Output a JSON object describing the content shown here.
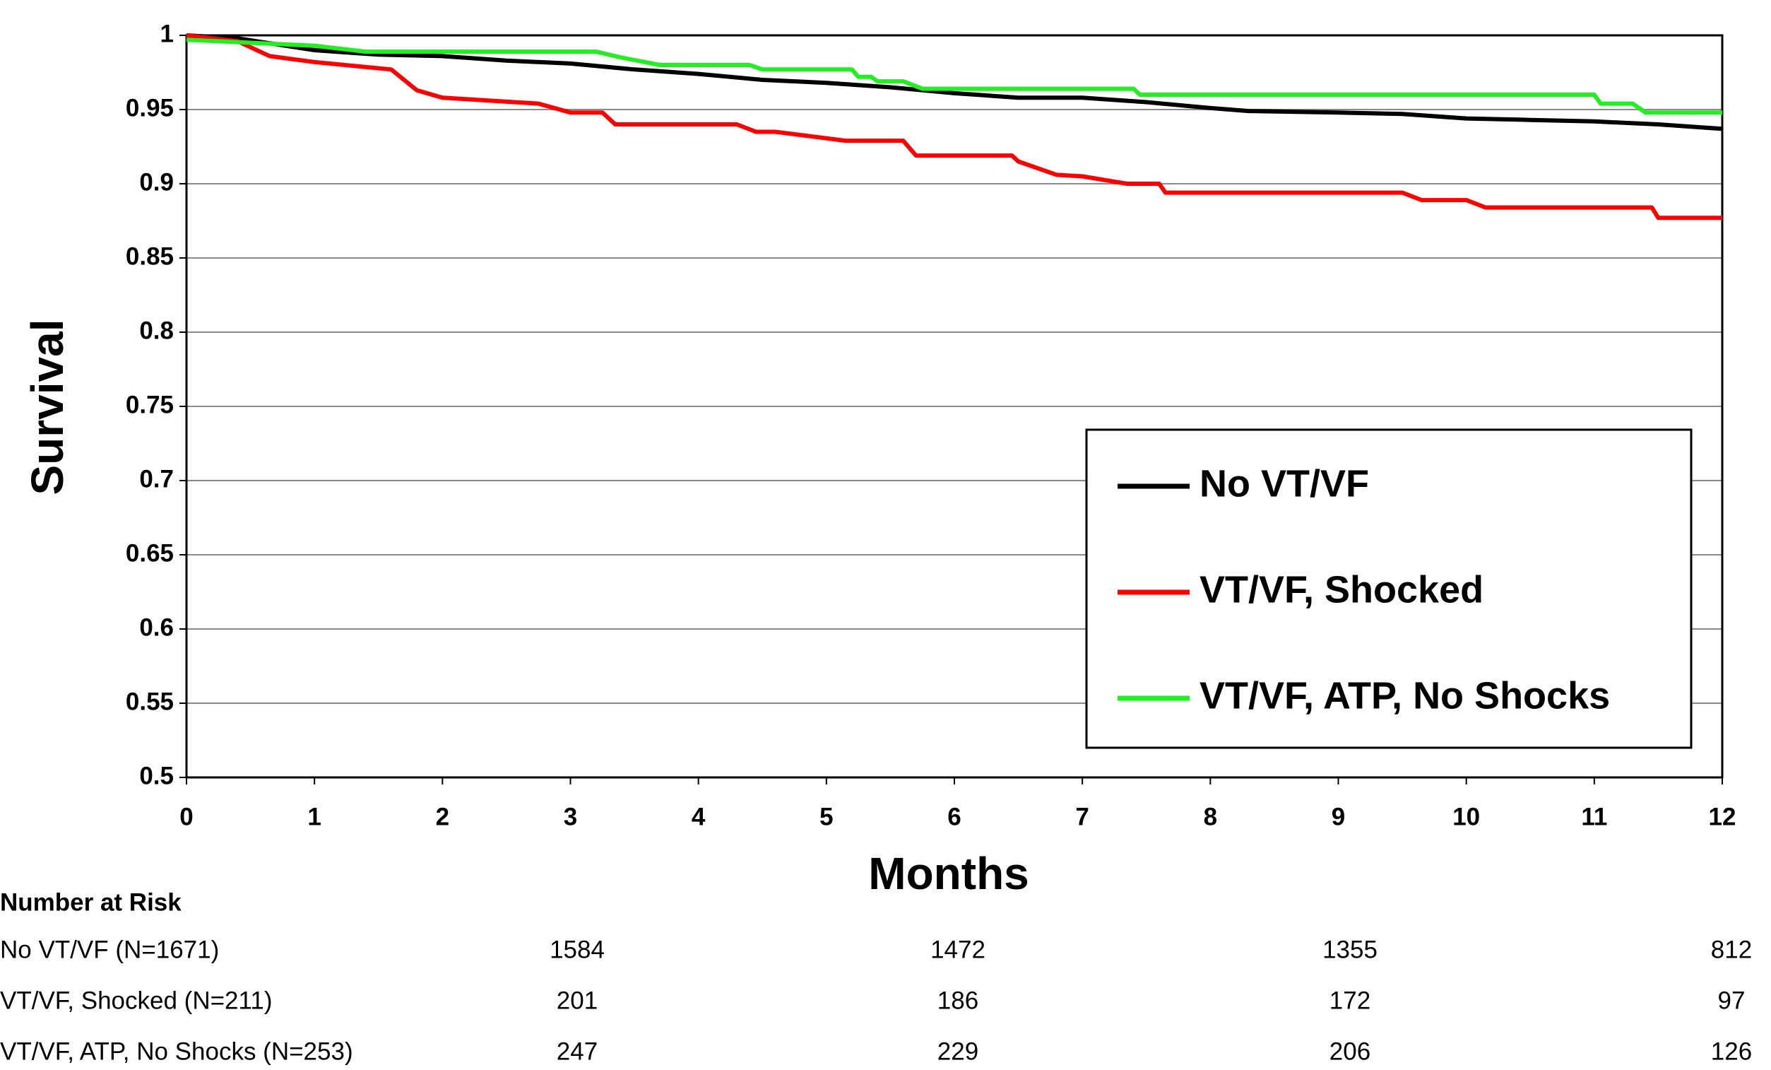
{
  "chart_data": {
    "type": "line",
    "xlabel": "Months",
    "ylabel": "Survival",
    "xlim": [
      0,
      12
    ],
    "xticks": [
      0,
      1,
      2,
      3,
      4,
      5,
      6,
      7,
      8,
      9,
      10,
      11,
      12
    ],
    "ylim": [
      0.5,
      1
    ],
    "yticks": [
      0.5,
      0.55,
      0.6,
      0.65,
      0.7,
      0.75,
      0.8,
      0.85,
      0.9,
      0.95,
      1
    ],
    "grid": true,
    "legend": "lower right",
    "series": [
      {
        "name": "No VT/VF",
        "color": "#000000",
        "x": [
          0,
          0.4,
          1,
          1.5,
          2,
          2.5,
          3,
          3.5,
          4,
          4.5,
          5,
          5.5,
          6,
          6.5,
          7,
          7.5,
          8,
          8.3,
          9,
          9.5,
          10,
          10.5,
          11,
          11.5,
          12
        ],
        "values": [
          1,
          0.998,
          0.99,
          0.987,
          0.986,
          0.983,
          0.981,
          0.977,
          0.974,
          0.97,
          0.968,
          0.965,
          0.961,
          0.958,
          0.958,
          0.955,
          0.951,
          0.949,
          0.948,
          0.947,
          0.944,
          0.943,
          0.942,
          0.94,
          0.937
        ]
      },
      {
        "name": "VT/VF, Shocked",
        "color": "#ff0000",
        "x": [
          0,
          0.4,
          0.65,
          1,
          1.6,
          1.8,
          2,
          2.75,
          3,
          3.25,
          3.35,
          4.3,
          4.45,
          4.6,
          5.15,
          5.6,
          5.7,
          6.45,
          6.5,
          6.8,
          7,
          7.35,
          7.6,
          7.65,
          9.5,
          9.65,
          10,
          10.15,
          11.45,
          11.5,
          12
        ],
        "values": [
          1,
          0.996,
          0.986,
          0.982,
          0.977,
          0.963,
          0.958,
          0.954,
          0.948,
          0.948,
          0.94,
          0.94,
          0.935,
          0.935,
          0.929,
          0.929,
          0.919,
          0.919,
          0.915,
          0.906,
          0.905,
          0.9,
          0.9,
          0.894,
          0.894,
          0.889,
          0.889,
          0.884,
          0.884,
          0.877,
          0.877
        ]
      },
      {
        "name": "VT/VF, ATP, No Shocks",
        "color": "#22ee22",
        "x": [
          0,
          1,
          1.4,
          3.2,
          3.4,
          3.7,
          4.4,
          4.5,
          5.2,
          5.25,
          5.35,
          5.4,
          5.6,
          5.75,
          7.4,
          7.45,
          11,
          11.05,
          11.3,
          11.4,
          12
        ],
        "values": [
          0.997,
          0.993,
          0.989,
          0.989,
          0.985,
          0.98,
          0.98,
          0.977,
          0.977,
          0.972,
          0.972,
          0.969,
          0.969,
          0.964,
          0.964,
          0.96,
          0.96,
          0.954,
          0.954,
          0.948,
          0.948
        ]
      }
    ]
  },
  "risk_table": {
    "title": "Number at Risk",
    "rows": [
      {
        "label": "No VT/VF (N=1671)",
        "values": [
          "1584",
          "1472",
          "1355",
          "812"
        ]
      },
      {
        "label": "VT/VF, Shocked (N=211)",
        "values": [
          "201",
          "186",
          "172",
          "97"
        ]
      },
      {
        "label": "VT/VF, ATP, No Shocks (N=253)",
        "values": [
          "247",
          "229",
          "206",
          "126"
        ]
      }
    ]
  }
}
